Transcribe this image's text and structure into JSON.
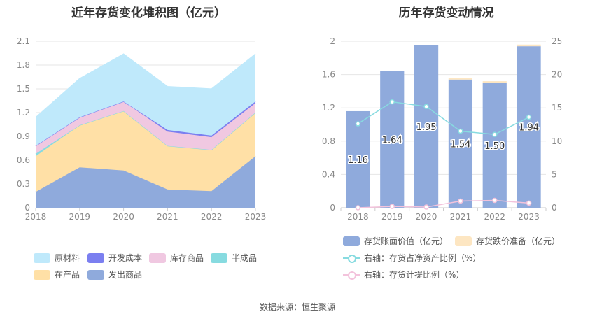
{
  "left_title": "近年存货变化堆积图（亿元）",
  "right_title": "历年存货变动情况",
  "source": "数据来源：恒生聚源",
  "chart_data": [
    {
      "type": "area",
      "stacked": true,
      "title": "近年存货变化堆积图（亿元）",
      "x": [
        "2018",
        "2019",
        "2020",
        "2021",
        "2022",
        "2023"
      ],
      "ylim": [
        0,
        2.1
      ],
      "yticks": [
        "0",
        "0.3",
        "0.6",
        "0.9",
        "1.2",
        "1.5",
        "1.8",
        "2.1"
      ],
      "grid": true,
      "series": [
        {
          "name": "发出商品",
          "color": "#8faadc",
          "values": [
            0.2,
            0.51,
            0.47,
            0.23,
            0.21,
            0.65
          ]
        },
        {
          "name": "在产品",
          "color": "#ffe0a6",
          "values": [
            0.45,
            0.53,
            0.75,
            0.55,
            0.52,
            0.55
          ]
        },
        {
          "name": "半成品",
          "color": "#87dbe0",
          "values": [
            0.03,
            0.0,
            0.0,
            0.0,
            0.0,
            0.0
          ]
        },
        {
          "name": "库存商品",
          "color": "#f0c8e1",
          "values": [
            0.1,
            0.1,
            0.12,
            0.18,
            0.16,
            0.12
          ]
        },
        {
          "name": "开发成本",
          "color": "#7b7ff0",
          "values": [
            0.0,
            0.0,
            0.0,
            0.02,
            0.02,
            0.02
          ]
        },
        {
          "name": "原材料",
          "color": "#bfe9fb",
          "values": [
            0.36,
            0.49,
            0.6,
            0.55,
            0.59,
            0.6
          ]
        }
      ],
      "legend": {
        "position": "bottom",
        "order": [
          "原材料",
          "开发成本",
          "库存商品",
          "半成品",
          "在产品",
          "发出商品"
        ]
      }
    },
    {
      "type": "bar",
      "title": "历年存货变动情况",
      "categories": [
        "2018",
        "2019",
        "2020",
        "2021",
        "2022",
        "2023"
      ],
      "ylim": [
        0,
        2
      ],
      "yticks": [
        "0",
        "0.4",
        "0.8",
        "1.2",
        "1.6",
        "2"
      ],
      "y2lim": [
        0,
        25
      ],
      "y2ticks": [
        "0",
        "5",
        "10",
        "15",
        "20",
        "25"
      ],
      "grid": true,
      "series": [
        {
          "name": "存货账面价值（亿元）",
          "color": "#8faadc",
          "values": [
            1.16,
            1.64,
            1.95,
            1.54,
            1.5,
            1.94
          ],
          "labels": [
            "1.16",
            "1.64",
            "1.95",
            "1.54",
            "1.50",
            "1.94"
          ]
        },
        {
          "name": "存货跌价准备（亿元）",
          "color": "#fde6c2",
          "values": [
            0,
            0,
            0,
            0.02,
            0.02,
            0.02
          ]
        },
        {
          "name": "右轴：存货占净资产比例（%）",
          "type": "line",
          "axis": "right",
          "color": "#87dbe0",
          "values": [
            12.6,
            15.9,
            15.2,
            11.5,
            11.0,
            13.6
          ]
        },
        {
          "name": "右轴：存货计提比例（%）",
          "type": "line",
          "axis": "right",
          "color": "#f3c3dc",
          "values": [
            0.0,
            0.2,
            0.1,
            1.0,
            1.1,
            0.7
          ]
        }
      ],
      "legend": {
        "position": "bottom"
      }
    }
  ]
}
